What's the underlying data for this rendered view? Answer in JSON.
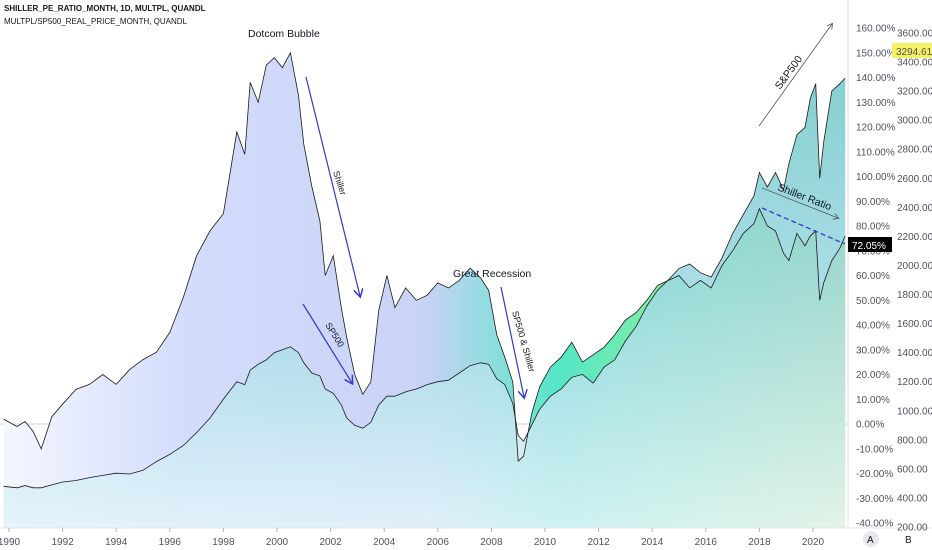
{
  "header": {
    "line1": "SHILLER_PE_RATIO_MONTH, 1D, MULTPL, QUANDL",
    "line2": "MULTPL/SP500_REAL_PRICE_MONTH, QUANDL"
  },
  "axis_buttons": {
    "a": "A",
    "b": "B"
  },
  "badges": {
    "price": "3294.61",
    "ratio": "72.05%"
  },
  "colors": {
    "price_badge": "#f5f064",
    "ratio_badge": "#000000",
    "trend_arrow": "#3437d0"
  },
  "annotations": {
    "dotcom": "Dotcom Bubble",
    "great_recession": "Great Recession",
    "shiller": "Shiller",
    "sp500": "SP500",
    "sp500_shiller": "SP500 & Shiller",
    "sandp500": "S&P500",
    "shiller_ratio": "Shiller Ratio"
  },
  "chart_data": {
    "type": "area",
    "x_ticks": [
      "1990",
      "1992",
      "1994",
      "1996",
      "1998",
      "2000",
      "2002",
      "2004",
      "2006",
      "2008",
      "2010",
      "2012",
      "2014",
      "2016",
      "2018",
      "2020"
    ],
    "y_left_ticks": [
      "160.00%",
      "150.00%",
      "140.00%",
      "130.00%",
      "120.00%",
      "110.00%",
      "100.00%",
      "90.00%",
      "80.00%",
      "70.00%",
      "60.00%",
      "50.00%",
      "40.00%",
      "30.00%",
      "20.00%",
      "10.00%",
      "0.00%",
      "-10.00%",
      "-20.00%",
      "-30.00%",
      "-40.00%"
    ],
    "y_right_ticks": [
      "3600.00",
      "3400.00",
      "3200.00",
      "3000.00",
      "2800.00",
      "2600.00",
      "2400.00",
      "2200.00",
      "2000.00",
      "1800.00",
      "1600.00",
      "1400.00",
      "1200.00",
      "1000.00",
      "800.00",
      "600.00",
      "400.00",
      "200.00"
    ],
    "xlim": [
      1989.8,
      2021.2
    ],
    "ylim_percent": [
      -41,
      165
    ],
    "series": [
      {
        "name": "SHILLER_PE_RATIO_MONTH",
        "x": [
          1989.8,
          1990.3,
          1990.6,
          1990.9,
          1991.2,
          1991.6,
          1992.0,
          1992.5,
          1993.0,
          1993.5,
          1994.0,
          1994.5,
          1995.0,
          1995.5,
          1996.0,
          1996.5,
          1997.0,
          1997.5,
          1998.0,
          1998.5,
          1998.8,
          1999.0,
          1999.3,
          1999.6,
          1999.9,
          2000.2,
          2000.5,
          2000.8,
          2001.0,
          2001.3,
          2001.6,
          2001.8,
          2002.1,
          2002.4,
          2002.6,
          2002.9,
          2003.2,
          2003.5,
          2003.8,
          2004.1,
          2004.4,
          2004.8,
          2005.2,
          2005.6,
          2006.0,
          2006.4,
          2006.8,
          2007.2,
          2007.6,
          2007.9,
          2008.2,
          2008.5,
          2008.8,
          2009.0,
          2009.2,
          2009.5,
          2009.8,
          2010.2,
          2010.6,
          2011.0,
          2011.4,
          2011.8,
          2012.2,
          2012.6,
          2013.0,
          2013.4,
          2013.8,
          2014.2,
          2014.6,
          2015.0,
          2015.4,
          2015.8,
          2016.2,
          2016.6,
          2017.0,
          2017.4,
          2017.8,
          2018.0,
          2018.3,
          2018.6,
          2018.9,
          2019.1,
          2019.4,
          2019.7,
          2019.9,
          2020.1,
          2020.25,
          2020.4,
          2020.7,
          2021.0,
          2021.2
        ],
        "values": [
          2,
          -1,
          1,
          -3,
          -10,
          3,
          8,
          14,
          16,
          20,
          16,
          22,
          26,
          29,
          37,
          51,
          68,
          78,
          85,
          118,
          109,
          138,
          130,
          145,
          148,
          144,
          150,
          133,
          113,
          96,
          82,
          60,
          68,
          47,
          35,
          20,
          12,
          17,
          46,
          60,
          47,
          55,
          50,
          52,
          57,
          55,
          58,
          63,
          59,
          54,
          36,
          27,
          17,
          -15,
          -13,
          4,
          15,
          23,
          27,
          33,
          25,
          28,
          31,
          36,
          42,
          45,
          50,
          56,
          58,
          60,
          55,
          58,
          55,
          64,
          70,
          77,
          81,
          87,
          80,
          78,
          69,
          66,
          77,
          72,
          76,
          78,
          50,
          57,
          66,
          71,
          76
        ]
      },
      {
        "name": "MULTPL/SP500_REAL_PRICE_MONTH",
        "x": [
          1989.8,
          1990.3,
          1990.6,
          1990.9,
          1991.2,
          1991.6,
          1992.0,
          1992.5,
          1993.0,
          1993.5,
          1994.0,
          1994.5,
          1995.0,
          1995.5,
          1996.0,
          1996.5,
          1997.0,
          1997.5,
          1998.0,
          1998.5,
          1998.8,
          1999.0,
          1999.3,
          1999.6,
          1999.9,
          2000.2,
          2000.5,
          2000.8,
          2001.0,
          2001.3,
          2001.6,
          2001.8,
          2002.1,
          2002.4,
          2002.6,
          2002.9,
          2003.2,
          2003.5,
          2003.8,
          2004.1,
          2004.4,
          2004.8,
          2005.2,
          2005.6,
          2006.0,
          2006.4,
          2006.8,
          2007.2,
          2007.6,
          2007.9,
          2008.2,
          2008.5,
          2008.8,
          2009.0,
          2009.2,
          2009.5,
          2009.8,
          2010.2,
          2010.6,
          2011.0,
          2011.4,
          2011.8,
          2012.2,
          2012.6,
          2013.0,
          2013.4,
          2013.8,
          2014.2,
          2014.6,
          2015.0,
          2015.4,
          2015.8,
          2016.2,
          2016.6,
          2017.0,
          2017.4,
          2017.8,
          2018.0,
          2018.3,
          2018.6,
          2018.9,
          2019.1,
          2019.4,
          2019.7,
          2019.9,
          2020.1,
          2020.25,
          2020.4,
          2020.7,
          2021.0,
          2021.2
        ],
        "values": [
          480,
          470,
          485,
          470,
          470,
          490,
          510,
          520,
          540,
          555,
          570,
          565,
          590,
          650,
          700,
          760,
          850,
          950,
          1080,
          1200,
          1180,
          1280,
          1320,
          1350,
          1400,
          1420,
          1440,
          1400,
          1330,
          1260,
          1240,
          1150,
          1120,
          1040,
          950,
          900,
          880,
          920,
          1040,
          1100,
          1100,
          1130,
          1150,
          1180,
          1200,
          1210,
          1260,
          1310,
          1330,
          1320,
          1220,
          1180,
          1050,
          830,
          790,
          900,
          1010,
          1100,
          1150,
          1230,
          1250,
          1190,
          1300,
          1350,
          1480,
          1580,
          1720,
          1830,
          1900,
          1980,
          2010,
          1950,
          1920,
          2050,
          2220,
          2350,
          2480,
          2640,
          2540,
          2640,
          2520,
          2700,
          2900,
          2950,
          3150,
          3250,
          2600,
          2850,
          3200,
          3250,
          3290
        ]
      }
    ]
  }
}
